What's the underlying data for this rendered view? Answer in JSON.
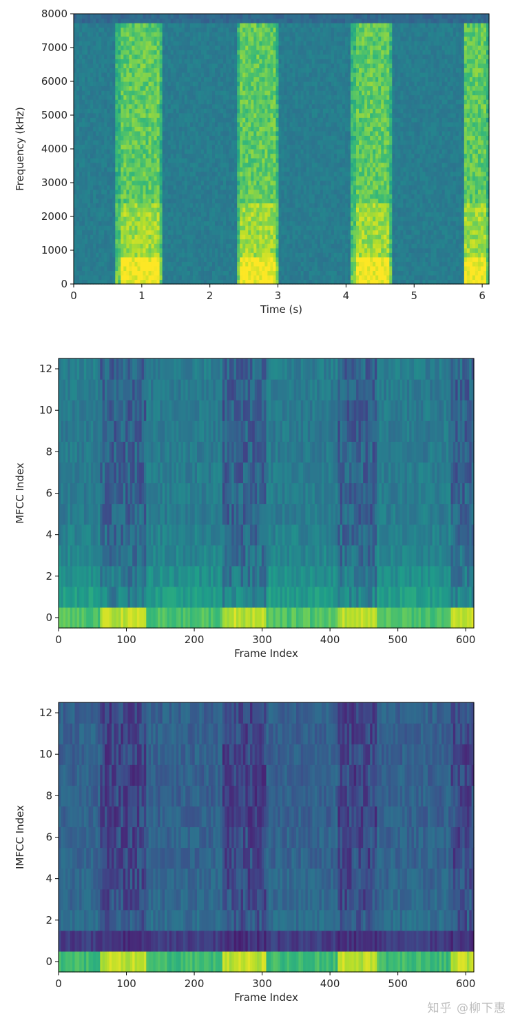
{
  "watermark": "知乎 @柳下惠",
  "colormap": [
    "#440154",
    "#482878",
    "#3e4989",
    "#31688e",
    "#26828e",
    "#1f9e89",
    "#35b779",
    "#6ece58",
    "#b5de2b",
    "#fde725"
  ],
  "chart_data": [
    {
      "type": "heatmap",
      "xlabel": "Time (s)",
      "ylabel": "Frequency (kHz)",
      "xlim": [
        0,
        6.1
      ],
      "ylim": [
        0,
        8000
      ],
      "x_ticks": [
        0,
        1,
        2,
        3,
        4,
        5,
        6
      ],
      "y_ticks": [
        0,
        1000,
        2000,
        3000,
        4000,
        5000,
        6000,
        7000,
        8000
      ],
      "background_level": 0.42,
      "speech_segments_s": [
        [
          0.62,
          1.3
        ],
        [
          2.4,
          3.0
        ],
        [
          4.08,
          4.68
        ],
        [
          5.72,
          6.1
        ]
      ]
    },
    {
      "type": "heatmap",
      "xlabel": "Frame Index",
      "ylabel": "MFCC Index",
      "xlim": [
        0,
        612
      ],
      "ylim": [
        -0.5,
        12.5
      ],
      "x_ticks": [
        0,
        100,
        200,
        300,
        400,
        500,
        600
      ],
      "y_ticks": [
        0,
        2,
        4,
        6,
        8,
        10,
        12
      ],
      "row_base_levels": [
        0.72,
        0.55,
        0.5,
        0.46,
        0.44,
        0.42,
        0.42,
        0.42,
        0.41,
        0.41,
        0.41,
        0.41,
        0.42
      ],
      "speech_segments_frames": [
        [
          62,
          130
        ],
        [
          240,
          305
        ],
        [
          410,
          470
        ],
        [
          578,
          612
        ]
      ]
    },
    {
      "type": "heatmap",
      "xlabel": "Frame Index",
      "ylabel": "IMFCC Index",
      "xlim": [
        0,
        612
      ],
      "ylim": [
        -0.5,
        12.5
      ],
      "x_ticks": [
        0,
        100,
        200,
        300,
        400,
        500,
        600
      ],
      "y_ticks": [
        0,
        2,
        4,
        6,
        8,
        10,
        12
      ],
      "row_base_levels": [
        0.68,
        0.18,
        0.36,
        0.34,
        0.33,
        0.32,
        0.32,
        0.31,
        0.31,
        0.31,
        0.31,
        0.31,
        0.31
      ],
      "speech_segments_frames": [
        [
          62,
          130
        ],
        [
          240,
          305
        ],
        [
          410,
          470
        ],
        [
          578,
          612
        ]
      ]
    }
  ]
}
